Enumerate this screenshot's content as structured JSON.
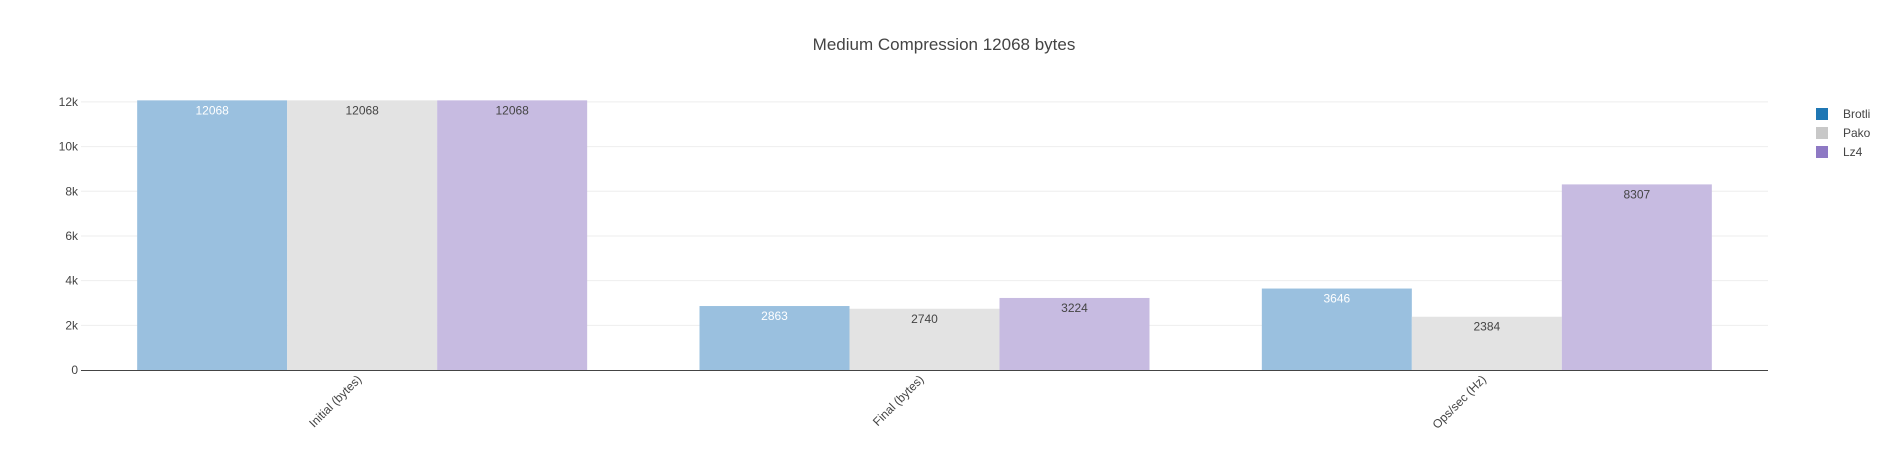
{
  "chart_data": {
    "type": "bar",
    "title": "Medium Compression 12068 bytes",
    "categories": [
      "Initial (bytes)",
      "Final (bytes)",
      "Ops/sec (Hz)"
    ],
    "series": [
      {
        "name": "Brotli",
        "color": "#1f77b4",
        "bar_color": "#9ac0df",
        "label_color": "#ffffff",
        "values": [
          12068,
          2863,
          3646
        ],
        "labels": [
          "12068",
          "2863",
          "3646"
        ]
      },
      {
        "name": "Pako",
        "color": "#c8c8c8",
        "bar_color": "#e3e3e3",
        "label_color": "#444444",
        "values": [
          12068,
          2740,
          2384
        ],
        "labels": [
          "12068",
          "2740",
          "2384"
        ]
      },
      {
        "name": "Lz4",
        "color": "#8e79c4",
        "bar_color": "#c7bbe1",
        "label_color": "#444444",
        "values": [
          12068,
          3224,
          8307
        ],
        "labels": [
          "12068",
          "3224",
          "8307"
        ]
      }
    ],
    "ylim": [
      0,
      12800
    ],
    "yticks": [
      0,
      2000,
      4000,
      6000,
      8000,
      10000,
      12000
    ],
    "ytick_labels": [
      "0",
      "2k",
      "4k",
      "6k",
      "8k",
      "10k",
      "12k"
    ],
    "grid": true,
    "legend": "top-right"
  }
}
